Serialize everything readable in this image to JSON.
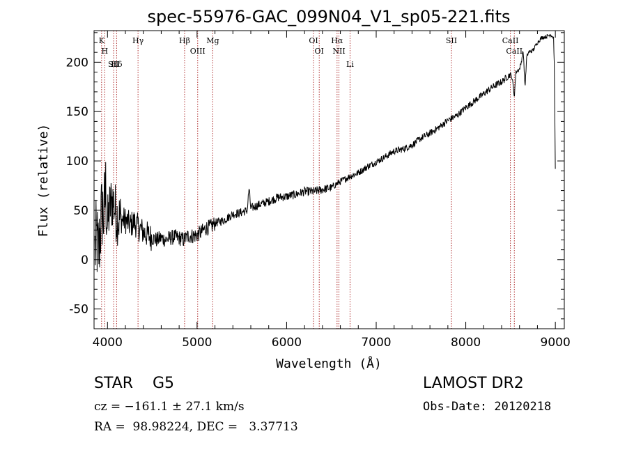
{
  "chart_data": {
    "type": "line",
    "title": "spec-55976-GAC_099N04_V1_sp05-221.fits",
    "xlabel": "Wavelength (Å)",
    "ylabel": "Flux (relative)",
    "xlim": [
      3850,
      9100
    ],
    "ylim": [
      -70,
      232
    ],
    "xticks": [
      4000,
      5000,
      6000,
      7000,
      8000,
      9000
    ],
    "yticks": [
      -50,
      0,
      50,
      100,
      150,
      200
    ],
    "grid": false,
    "series": [
      {
        "x": [
          3860,
          3880,
          3900,
          3920,
          3940,
          3960,
          3980,
          4000,
          4030,
          4060,
          4100,
          4150,
          4200,
          4250,
          4300,
          4350,
          4400,
          4450,
          4500,
          4550,
          4600,
          4650,
          4700,
          4750,
          4800,
          4850,
          4900,
          4950,
          5000,
          5050,
          5100,
          5150,
          5200,
          5300,
          5400,
          5500,
          5560,
          5580,
          5600,
          5700,
          5800,
          5900,
          6000,
          6100,
          6200,
          6300,
          6400,
          6500,
          6563,
          6600,
          6700,
          6800,
          6900,
          7000,
          7100,
          7200,
          7300,
          7400,
          7500,
          7600,
          7700,
          7800,
          7900,
          8000,
          8100,
          8200,
          8300,
          8400,
          8450,
          8498,
          8520,
          8542,
          8560,
          8600,
          8620,
          8640,
          8662,
          8680,
          8700,
          8750,
          8800,
          8850,
          8900,
          8950,
          8980,
          8990,
          9000
        ],
        "y": [
          10,
          20,
          5,
          30,
          50,
          45,
          70,
          35,
          55,
          60,
          45,
          40,
          40,
          35,
          38,
          32,
          28,
          25,
          22,
          20,
          22,
          20,
          22,
          23,
          22,
          20,
          24,
          24,
          25,
          28,
          32,
          33,
          37,
          40,
          46,
          48,
          50,
          72,
          52,
          56,
          59,
          63,
          64,
          66,
          69,
          69,
          71,
          73,
          77,
          79,
          84,
          88,
          94,
          99,
          104,
          110,
          112,
          116,
          123,
          128,
          134,
          141,
          146,
          154,
          161,
          168,
          175,
          180,
          184,
          188,
          183,
          165,
          190,
          193,
          200,
          212,
          175,
          205,
          210,
          212,
          220,
          225,
          226,
          228,
          225,
          190,
          90
        ]
      }
    ],
    "line_labels": [
      {
        "label": "K",
        "x": 3934
      },
      {
        "label": "H",
        "x": 3969
      },
      {
        "label": "SII",
        "x": 4069
      },
      {
        "label": "Hδ",
        "x": 4102
      },
      {
        "label": "Hγ",
        "x": 4341
      },
      {
        "label": "Hβ",
        "x": 4861
      },
      {
        "label": "OIII",
        "x": 5007
      },
      {
        "label": "Mg",
        "x": 5175
      },
      {
        "label": "OI",
        "x": 6300
      },
      {
        "label": "OI",
        "x": 6364
      },
      {
        "label": "Hα",
        "x": 6563
      },
      {
        "label": "NII",
        "x": 6584
      },
      {
        "label": "Li",
        "x": 6708
      },
      {
        "label": "SII",
        "x": 7840
      },
      {
        "label": "CaII",
        "x": 8498
      },
      {
        "label": "CaII",
        "x": 8542
      }
    ]
  },
  "footer": {
    "classification": "STAR    G5",
    "velocity": "cz = −161.1 ± 27.1 km/s",
    "coordinates": "RA =  98.98224, DEC =   3.37713",
    "survey": "LAMOST DR2",
    "obs_date": "Obs-Date: 20120218"
  }
}
